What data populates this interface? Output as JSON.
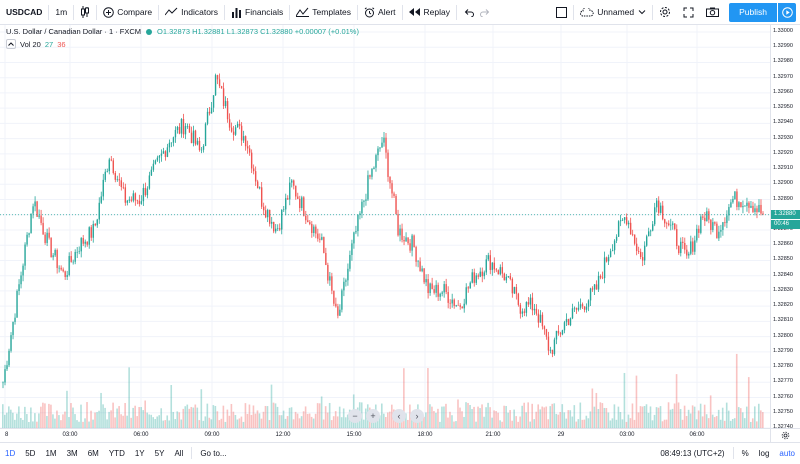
{
  "toolbar": {
    "symbol": "USDCAD",
    "interval": "1m",
    "compare": "Compare",
    "indicators": "Indicators",
    "financials": "Financials",
    "templates": "Templates",
    "alert": "Alert",
    "replay": "Replay",
    "layout_name": "Unnamed",
    "publish": "Publish"
  },
  "legend": {
    "title": "U.S. Dollar / Canadian Dollar · 1 · FXCM",
    "open": "O1.32873",
    "high": "H1.32881",
    "low": "L1.32873",
    "close": "C1.32880",
    "change": "+0.00007 (+0.01%)"
  },
  "volume_legend": {
    "label": "Vol 20",
    "value_green": "27",
    "value_red": "36"
  },
  "price_scale": {
    "labels": [
      "1.33000",
      "1.32990",
      "1.32980",
      "1.32970",
      "1.32960",
      "1.32950",
      "1.32940",
      "1.32930",
      "1.32920",
      "1.32910",
      "1.32900",
      "1.32890",
      "1.32880",
      "1.32870",
      "1.32860",
      "1.32850",
      "1.32840",
      "1.32830",
      "1.32820",
      "1.32810",
      "1.32800",
      "1.32790",
      "1.32780",
      "1.32770",
      "1.32760",
      "1.32750",
      "1.32740"
    ],
    "current_price": "1.32880",
    "countdown": "00:46"
  },
  "time_scale": {
    "labels": [
      "8",
      "03:00",
      "06:00",
      "09:00",
      "12:00",
      "15:00",
      "18:00",
      "21:00",
      "29",
      "03:00",
      "06:00"
    ]
  },
  "bottombar": {
    "ranges": [
      "1D",
      "5D",
      "1M",
      "3M",
      "6M",
      "YTD",
      "1Y",
      "5Y",
      "All"
    ],
    "goto": "Go to...",
    "clock": "08:49:13 (UTC+2)",
    "percent": "%",
    "log": "log",
    "auto": "auto"
  },
  "colors": {
    "up": "#26a69a",
    "down": "#ef5350",
    "accent": "#2196f3"
  },
  "chart_data": {
    "type": "candlestick",
    "symbol": "USDCAD",
    "interval": "1m",
    "ylim": [
      1.3274,
      1.33
    ],
    "x": [
      "03:00",
      "06:00",
      "09:00",
      "12:00",
      "15:00",
      "18:00",
      "21:00",
      "29",
      "03:00",
      "06:00"
    ],
    "price_path": [
      1.3277,
      1.3283,
      1.3289,
      1.3286,
      1.3284,
      1.3286,
      1.3287,
      1.3292,
      1.3289,
      1.3289,
      1.3291,
      1.3293,
      1.3294,
      1.3292,
      1.3297,
      1.3294,
      1.3293,
      1.3289,
      1.3287,
      1.329,
      1.3288,
      1.3286,
      1.3281,
      1.3286,
      1.329,
      1.3293,
      1.3287,
      1.3286,
      1.3283,
      1.3283,
      1.3282,
      1.3284,
      1.3285,
      1.3284,
      1.3282,
      1.3282,
      1.3279,
      1.3281,
      1.3282,
      1.3283,
      1.3286,
      1.3288,
      1.3285,
      1.3289,
      1.3287,
      1.3285,
      1.3288,
      1.3287,
      1.3289,
      1.3289,
      1.3288
    ]
  }
}
